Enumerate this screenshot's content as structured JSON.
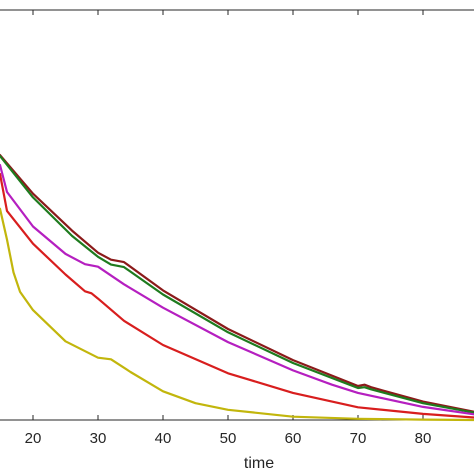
{
  "chart_data": {
    "type": "line",
    "title": "",
    "xlabel": "time",
    "ylabel": "",
    "xlim": [
      14,
      90
    ],
    "ylim": [
      0,
      1
    ],
    "grid": false,
    "x_ticks": [
      20,
      30,
      40,
      50,
      60,
      70,
      80
    ],
    "x_tick_labels": [
      "20",
      "30",
      "40",
      "50",
      "60",
      "70",
      "80"
    ],
    "series": [
      {
        "color": "#8b1a1a",
        "x": [
          14,
          20,
          26,
          30,
          32,
          34,
          40,
          50,
          60,
          70,
          71,
          72,
          80,
          90
        ],
        "y": [
          0.646,
          0.552,
          0.462,
          0.408,
          0.391,
          0.385,
          0.316,
          0.222,
          0.146,
          0.083,
          0.086,
          0.08,
          0.045,
          0.02
        ]
      },
      {
        "color": "#1e7b1e",
        "x": [
          14,
          20,
          26,
          30,
          32,
          34,
          40,
          50,
          60,
          70,
          71,
          72,
          80,
          90
        ],
        "y": [
          0.644,
          0.543,
          0.449,
          0.398,
          0.379,
          0.373,
          0.306,
          0.214,
          0.139,
          0.078,
          0.08,
          0.075,
          0.041,
          0.018
        ]
      },
      {
        "color": "#b51fc0",
        "x": [
          14,
          16,
          20,
          25,
          28,
          30,
          34,
          40,
          50,
          60,
          66,
          70,
          80,
          90
        ],
        "y": [
          0.622,
          0.556,
          0.472,
          0.405,
          0.38,
          0.374,
          0.331,
          0.274,
          0.19,
          0.121,
          0.086,
          0.066,
          0.032,
          0.014
        ]
      },
      {
        "color": "#d81e1e",
        "x": [
          14,
          16,
          20,
          25,
          28,
          29,
          30,
          34,
          40,
          50,
          60,
          68,
          70,
          80,
          90
        ],
        "y": [
          0.6,
          0.51,
          0.43,
          0.355,
          0.314,
          0.309,
          0.296,
          0.242,
          0.183,
          0.114,
          0.066,
          0.038,
          0.031,
          0.015,
          0.006
        ]
      },
      {
        "color": "#c2b60c",
        "x": [
          14,
          16,
          17,
          18,
          20,
          25,
          30,
          32,
          35,
          40,
          45,
          50,
          60,
          70,
          80,
          90
        ],
        "y": [
          0.515,
          0.44,
          0.36,
          0.313,
          0.268,
          0.192,
          0.152,
          0.148,
          0.117,
          0.07,
          0.041,
          0.025,
          0.008,
          0.003,
          0.001,
          0.0
        ]
      }
    ]
  }
}
